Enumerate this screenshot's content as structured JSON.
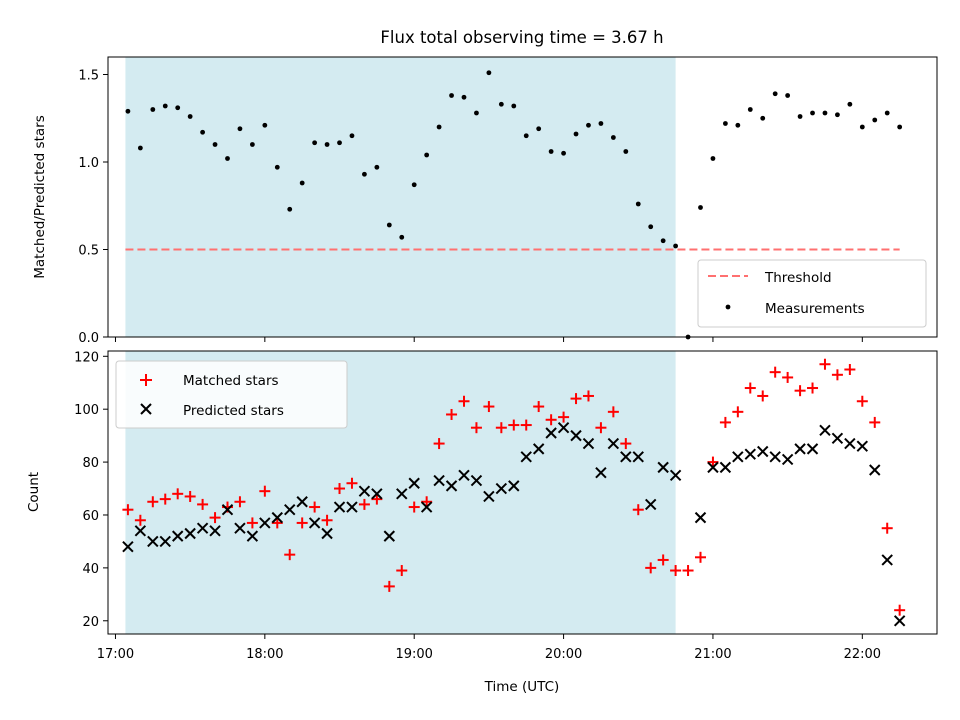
{
  "chart_data": [
    {
      "type": "scatter",
      "title": "Flux total observing time = 3.67 h",
      "xlabel": "",
      "ylabel": "Matched/Predicted stars",
      "ylim": [
        0,
        1.6
      ],
      "y_ticks": [
        0.0,
        0.5,
        1.0,
        1.5
      ],
      "y_tick_labels": [
        "0.0",
        "0.5",
        "1.0",
        "1.5"
      ],
      "grid": false,
      "legend_placement": "lower-right",
      "shaded_region": {
        "x_start": "17:04",
        "x_end": "20:45",
        "color": "#d4ebf1"
      },
      "threshold": {
        "name": "Threshold",
        "value": 0.5,
        "x_start": "17:04",
        "x_end": "22:15",
        "color": "#ff7070"
      },
      "series": [
        {
          "name": "Measurements",
          "color": "#000000",
          "marker": "dot",
          "points": [
            [
              "17:05",
              1.29
            ],
            [
              "17:10",
              1.08
            ],
            [
              "17:15",
              1.3
            ],
            [
              "17:20",
              1.32
            ],
            [
              "17:25",
              1.31
            ],
            [
              "17:30",
              1.26
            ],
            [
              "17:35",
              1.17
            ],
            [
              "17:40",
              1.1
            ],
            [
              "17:45",
              1.02
            ],
            [
              "17:50",
              1.19
            ],
            [
              "17:55",
              1.1
            ],
            [
              "18:00",
              1.21
            ],
            [
              "18:05",
              0.97
            ],
            [
              "18:10",
              0.73
            ],
            [
              "18:15",
              0.88
            ],
            [
              "18:20",
              1.11
            ],
            [
              "18:25",
              1.1
            ],
            [
              "18:30",
              1.11
            ],
            [
              "18:35",
              1.15
            ],
            [
              "18:40",
              0.93
            ],
            [
              "18:45",
              0.97
            ],
            [
              "18:50",
              0.64
            ],
            [
              "18:55",
              0.57
            ],
            [
              "19:00",
              0.87
            ],
            [
              "19:05",
              1.04
            ],
            [
              "19:10",
              1.2
            ],
            [
              "19:15",
              1.38
            ],
            [
              "19:20",
              1.37
            ],
            [
              "19:25",
              1.28
            ],
            [
              "19:30",
              1.51
            ],
            [
              "19:35",
              1.33
            ],
            [
              "19:40",
              1.32
            ],
            [
              "19:45",
              1.15
            ],
            [
              "19:50",
              1.19
            ],
            [
              "19:55",
              1.06
            ],
            [
              "20:00",
              1.05
            ],
            [
              "20:05",
              1.16
            ],
            [
              "20:10",
              1.21
            ],
            [
              "20:15",
              1.22
            ],
            [
              "20:20",
              1.14
            ],
            [
              "20:25",
              1.06
            ],
            [
              "20:30",
              0.76
            ],
            [
              "20:35",
              0.63
            ],
            [
              "20:40",
              0.55
            ],
            [
              "20:45",
              0.52
            ],
            [
              "20:50",
              0.0
            ],
            [
              "20:55",
              0.74
            ],
            [
              "21:00",
              1.02
            ],
            [
              "21:05",
              1.22
            ],
            [
              "21:10",
              1.21
            ],
            [
              "21:15",
              1.3
            ],
            [
              "21:20",
              1.25
            ],
            [
              "21:25",
              1.39
            ],
            [
              "21:30",
              1.38
            ],
            [
              "21:35",
              1.26
            ],
            [
              "21:40",
              1.28
            ],
            [
              "21:45",
              1.28
            ],
            [
              "21:50",
              1.27
            ],
            [
              "21:55",
              1.33
            ],
            [
              "22:00",
              1.2
            ],
            [
              "22:05",
              1.24
            ],
            [
              "22:10",
              1.28
            ],
            [
              "22:15",
              1.2
            ]
          ]
        }
      ]
    },
    {
      "type": "scatter",
      "title": "",
      "xlabel": "Time (UTC)",
      "ylabel": "Count",
      "ylim": [
        15,
        122
      ],
      "y_ticks": [
        20,
        40,
        60,
        80,
        100,
        120
      ],
      "y_tick_labels": [
        "20",
        "40",
        "60",
        "80",
        "100",
        "120"
      ],
      "xlim": [
        "16:57",
        "22:30"
      ],
      "x_ticks": [
        "17:00",
        "18:00",
        "19:00",
        "20:00",
        "21:00",
        "22:00"
      ],
      "x_tick_labels": [
        "17:00",
        "18:00",
        "19:00",
        "20:00",
        "21:00",
        "22:00"
      ],
      "grid": false,
      "legend_placement": "top-left",
      "shaded_region": {
        "x_start": "17:04",
        "x_end": "20:45",
        "color": "#d4ebf1"
      },
      "series": [
        {
          "name": "Matched stars",
          "color": "#ff0000",
          "marker": "plus",
          "points": [
            [
              "17:05",
              62
            ],
            [
              "17:10",
              58
            ],
            [
              "17:15",
              65
            ],
            [
              "17:20",
              66
            ],
            [
              "17:25",
              68
            ],
            [
              "17:30",
              67
            ],
            [
              "17:35",
              64
            ],
            [
              "17:40",
              59
            ],
            [
              "17:45",
              63
            ],
            [
              "17:50",
              65
            ],
            [
              "17:55",
              57
            ],
            [
              "18:00",
              69
            ],
            [
              "18:05",
              57
            ],
            [
              "18:10",
              45
            ],
            [
              "18:15",
              57
            ],
            [
              "18:20",
              63
            ],
            [
              "18:25",
              58
            ],
            [
              "18:30",
              70
            ],
            [
              "18:35",
              72
            ],
            [
              "18:40",
              64
            ],
            [
              "18:45",
              66
            ],
            [
              "18:50",
              33
            ],
            [
              "18:55",
              39
            ],
            [
              "19:00",
              63
            ],
            [
              "19:05",
              65
            ],
            [
              "19:10",
              87
            ],
            [
              "19:15",
              98
            ],
            [
              "19:20",
              103
            ],
            [
              "19:25",
              93
            ],
            [
              "19:30",
              101
            ],
            [
              "19:35",
              93
            ],
            [
              "19:40",
              94
            ],
            [
              "19:45",
              94
            ],
            [
              "19:50",
              101
            ],
            [
              "19:55",
              96
            ],
            [
              "20:00",
              97
            ],
            [
              "20:05",
              104
            ],
            [
              "20:10",
              105
            ],
            [
              "20:15",
              93
            ],
            [
              "20:20",
              99
            ],
            [
              "20:25",
              87
            ],
            [
              "20:30",
              62
            ],
            [
              "20:35",
              40
            ],
            [
              "20:40",
              43
            ],
            [
              "20:45",
              39
            ],
            [
              "20:50",
              39
            ],
            [
              "20:55",
              44
            ],
            [
              "21:00",
              80
            ],
            [
              "21:05",
              95
            ],
            [
              "21:10",
              99
            ],
            [
              "21:15",
              108
            ],
            [
              "21:20",
              105
            ],
            [
              "21:25",
              114
            ],
            [
              "21:30",
              112
            ],
            [
              "21:35",
              107
            ],
            [
              "21:40",
              108
            ],
            [
              "21:45",
              117
            ],
            [
              "21:50",
              113
            ],
            [
              "21:55",
              115
            ],
            [
              "22:00",
              103
            ],
            [
              "22:05",
              95
            ],
            [
              "22:10",
              55
            ],
            [
              "22:15",
              24
            ]
          ]
        },
        {
          "name": "Predicted stars",
          "color": "#000000",
          "marker": "x",
          "points": [
            [
              "17:05",
              48
            ],
            [
              "17:10",
              54
            ],
            [
              "17:15",
              50
            ],
            [
              "17:20",
              50
            ],
            [
              "17:25",
              52
            ],
            [
              "17:30",
              53
            ],
            [
              "17:35",
              55
            ],
            [
              "17:40",
              54
            ],
            [
              "17:45",
              62
            ],
            [
              "17:50",
              55
            ],
            [
              "17:55",
              52
            ],
            [
              "18:00",
              57
            ],
            [
              "18:05",
              59
            ],
            [
              "18:10",
              62
            ],
            [
              "18:15",
              65
            ],
            [
              "18:20",
              57
            ],
            [
              "18:25",
              53
            ],
            [
              "18:30",
              63
            ],
            [
              "18:35",
              63
            ],
            [
              "18:40",
              69
            ],
            [
              "18:45",
              68
            ],
            [
              "18:50",
              52
            ],
            [
              "18:55",
              68
            ],
            [
              "19:00",
              72
            ],
            [
              "19:05",
              63
            ],
            [
              "19:10",
              73
            ],
            [
              "19:15",
              71
            ],
            [
              "19:20",
              75
            ],
            [
              "19:25",
              73
            ],
            [
              "19:30",
              67
            ],
            [
              "19:35",
              70
            ],
            [
              "19:40",
              71
            ],
            [
              "19:45",
              82
            ],
            [
              "19:50",
              85
            ],
            [
              "19:55",
              91
            ],
            [
              "20:00",
              93
            ],
            [
              "20:05",
              90
            ],
            [
              "20:10",
              87
            ],
            [
              "20:15",
              76
            ],
            [
              "20:20",
              87
            ],
            [
              "20:25",
              82
            ],
            [
              "20:30",
              82
            ],
            [
              "20:35",
              64
            ],
            [
              "20:40",
              78
            ],
            [
              "20:45",
              75
            ],
            [
              "20:55",
              59
            ],
            [
              "21:00",
              78
            ],
            [
              "21:05",
              78
            ],
            [
              "21:10",
              82
            ],
            [
              "21:15",
              83
            ],
            [
              "21:20",
              84
            ],
            [
              "21:25",
              82
            ],
            [
              "21:30",
              81
            ],
            [
              "21:35",
              85
            ],
            [
              "21:40",
              85
            ],
            [
              "21:45",
              92
            ],
            [
              "21:50",
              89
            ],
            [
              "21:55",
              87
            ],
            [
              "22:00",
              86
            ],
            [
              "22:05",
              77
            ],
            [
              "22:10",
              43
            ],
            [
              "22:15",
              20
            ]
          ]
        }
      ]
    }
  ]
}
